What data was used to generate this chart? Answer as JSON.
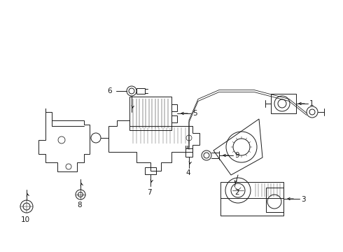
{
  "bg_color": "#ffffff",
  "line_color": "#1a1a1a",
  "fig_width": 4.9,
  "fig_height": 3.6,
  "dpi": 100,
  "label_fontsize": 7.5,
  "lw": 0.7
}
